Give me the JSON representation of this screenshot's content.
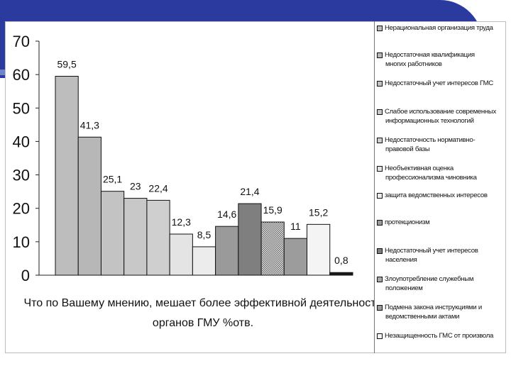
{
  "colors": {
    "slide_accent": "#2b3a9e",
    "slide_accent_light": "#6f86c9"
  },
  "chart_data": {
    "type": "bar",
    "xlabel": "Что по Вашему мнению, мешает более эффективной деятельности органов ГМУ %отв.",
    "xlabel_lines": [
      "Что по Вашему мнению, мешает более эффективной деятельности",
      "органов ГМУ %отв."
    ],
    "ylim": [
      0,
      70
    ],
    "yticks": [
      0,
      10,
      20,
      30,
      40,
      50,
      60,
      70
    ],
    "grid": false,
    "legend_position": "right",
    "series": [
      {
        "name": "Нерациональная организация труда",
        "value": 59.5,
        "label": "59,5",
        "color": "#bdbdbd",
        "pattern": "solid"
      },
      {
        "name": "Недостаточная квалификация многих работников",
        "value": 41.3,
        "label": "41,3",
        "color": "#b7b7b7",
        "pattern": "solid"
      },
      {
        "name": "Недостаточный учет интересов ГМС",
        "value": 25.1,
        "label": "25,1",
        "color": "#c3c3c3",
        "pattern": "solid"
      },
      {
        "name": "Слабое использование современных информационных технологий",
        "value": 23,
        "label": "23",
        "color": "#c8c8c8",
        "pattern": "solid"
      },
      {
        "name": "Недостаточность нормативно-правовой базы",
        "value": 22.4,
        "label": "22,4",
        "color": "#cfcfcf",
        "pattern": "solid"
      },
      {
        "name": "Необъективная оценка профессионализма чиновника",
        "value": 12.3,
        "label": "12,3",
        "color": "#e4e4e4",
        "pattern": "solid"
      },
      {
        "name": "защита ведомственных интересов",
        "value": 8.5,
        "label": "8,5",
        "color": "#ececec",
        "pattern": "solid"
      },
      {
        "name": "протекционизм",
        "value": 14.6,
        "label": "14,6",
        "color": "#9a9a9a",
        "pattern": "solid"
      },
      {
        "name": "Недостаточный учет интересов населения",
        "value": 21.4,
        "label": "21,4",
        "color": "#7f7f7f",
        "pattern": "solid"
      },
      {
        "name": "Злоупотребление служебным положением",
        "value": 15.9,
        "label": "15,9",
        "color": "#a8a8a8",
        "pattern": "checker"
      },
      {
        "name": "Подмена закона инструкциями и ведомственными актами",
        "value": 11,
        "label": "11",
        "color": "#9c9c9c",
        "pattern": "solid"
      },
      {
        "name": "Незащищенность ГМС от произвола",
        "value": 15.2,
        "label": "15,2",
        "color": "#f4f4f4",
        "pattern": "solid"
      },
      {
        "name": "",
        "value": 0.8,
        "label": "0,8",
        "color": "#1a1a1a",
        "pattern": "solid"
      }
    ]
  },
  "legend": {
    "items": [
      {
        "lines": [
          "Нерациональная организация труда"
        ]
      },
      {
        "lines": [
          "Недостаточная квалификация",
          "многих работников"
        ]
      },
      {
        "lines": [
          "Недостаточный учет интересов ГМС"
        ]
      },
      {
        "lines": [
          "Слабое использование современных",
          "информационных технологий"
        ]
      },
      {
        "lines": [
          "Недостаточность нормативно-",
          "правовой базы"
        ]
      },
      {
        "lines": [
          "Необъективная оценка",
          "профессионализма чиновника"
        ]
      },
      {
        "lines": [
          "защита ведомственных интересов"
        ]
      },
      {
        "lines": [
          "протекционизм"
        ]
      },
      {
        "lines": [
          "Недостаточный учет интересов",
          "населения"
        ]
      },
      {
        "lines": [
          "Злоупотребление служебным",
          "положением"
        ]
      },
      {
        "lines": [
          "Подмена закона инструкциями и",
          "ведомственными актами"
        ]
      },
      {
        "lines": [
          "Незащищенность ГМС от произвола"
        ]
      }
    ]
  }
}
